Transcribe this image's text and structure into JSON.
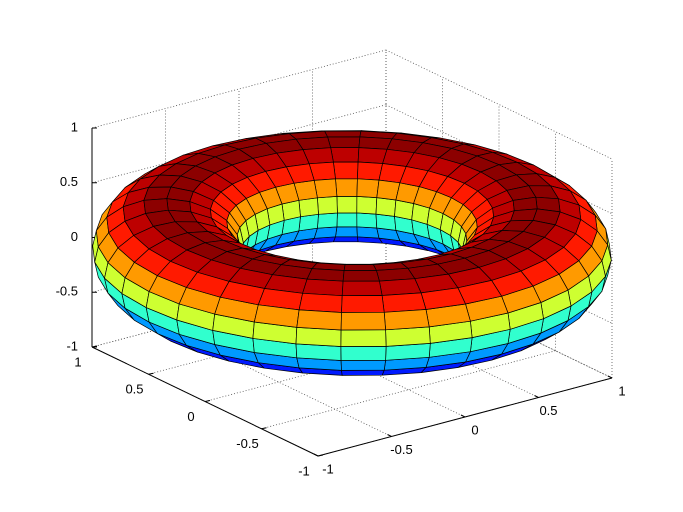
{
  "chart_data": {
    "type": "surface",
    "shape": "torus",
    "major_radius": 1,
    "minor_radius": 0.4,
    "height_radius": 0.45,
    "xlim": [
      -1,
      1
    ],
    "ylim": [
      -1,
      1
    ],
    "zlim": [
      -1,
      1
    ],
    "xticks": [
      -1,
      -0.5,
      0,
      0.5,
      1
    ],
    "yticks": [
      -1,
      -0.5,
      0,
      0.5,
      1
    ],
    "zticks": [
      -1,
      -0.5,
      0,
      0.5,
      1
    ],
    "grid": true
  }
}
